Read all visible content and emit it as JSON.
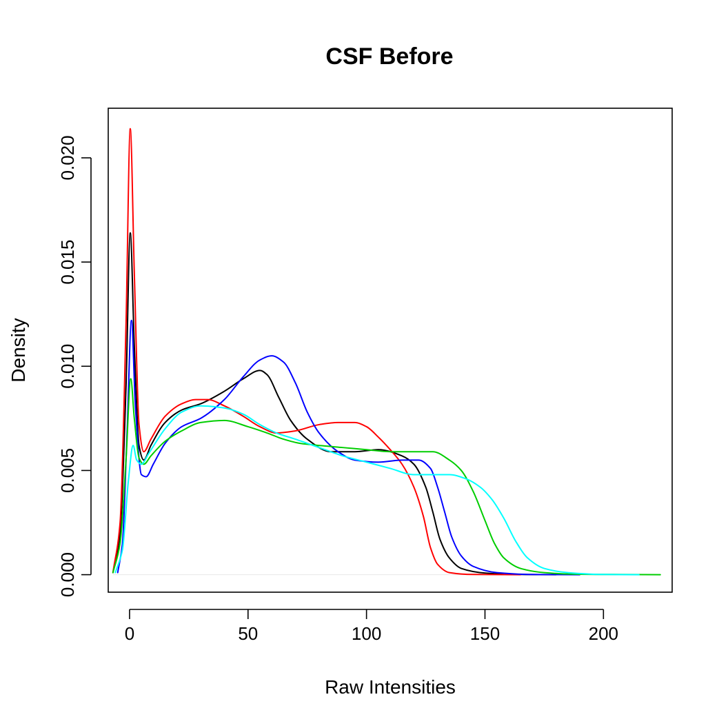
{
  "chart_data": {
    "type": "line",
    "title": "CSF Before",
    "xlabel": "Raw Intensities",
    "ylabel": "Density",
    "xlim": [
      -9,
      229
    ],
    "ylim": [
      -0.00084,
      0.02238
    ],
    "x_ticks": [
      0,
      50,
      100,
      150,
      200
    ],
    "x_tick_labels": [
      "0",
      "50",
      "100",
      "150",
      "200"
    ],
    "y_ticks": [
      0.0,
      0.005,
      0.01,
      0.015,
      0.02
    ],
    "y_tick_labels": [
      "0.000",
      "0.005",
      "0.010",
      "0.015",
      "0.020"
    ],
    "grid": false,
    "legend": "none",
    "series": [
      {
        "color": "#000000",
        "points": [
          [
            -7,
            0.0001
          ],
          [
            -4,
            0.002
          ],
          [
            -1.5,
            0.009
          ],
          [
            0.3,
            0.0164
          ],
          [
            2,
            0.011
          ],
          [
            4,
            0.0062
          ],
          [
            6,
            0.0055
          ],
          [
            9,
            0.0062
          ],
          [
            15,
            0.0073
          ],
          [
            22,
            0.0079
          ],
          [
            30,
            0.0082
          ],
          [
            40,
            0.0088
          ],
          [
            48,
            0.0094
          ],
          [
            55,
            0.0098
          ],
          [
            58,
            0.0096
          ],
          [
            63,
            0.0085
          ],
          [
            68,
            0.0074
          ],
          [
            75,
            0.0065
          ],
          [
            85,
            0.0059
          ],
          [
            95,
            0.0059
          ],
          [
            105,
            0.006
          ],
          [
            115,
            0.0057
          ],
          [
            120,
            0.0053
          ],
          [
            125,
            0.0042
          ],
          [
            128,
            0.003
          ],
          [
            131,
            0.0017
          ],
          [
            135,
            0.0008
          ],
          [
            140,
            0.0003
          ],
          [
            150,
            8e-05
          ],
          [
            165,
            1e-05
          ],
          [
            180,
            0.0
          ]
        ]
      },
      {
        "color": "#ff0000",
        "points": [
          [
            -7,
            0.0001
          ],
          [
            -4,
            0.0025
          ],
          [
            -1.5,
            0.012
          ],
          [
            0.3,
            0.0214
          ],
          [
            2,
            0.0145
          ],
          [
            4,
            0.0072
          ],
          [
            6,
            0.0059
          ],
          [
            9,
            0.0065
          ],
          [
            15,
            0.0076
          ],
          [
            22,
            0.0082
          ],
          [
            28,
            0.0084
          ],
          [
            33,
            0.0084
          ],
          [
            40,
            0.0081
          ],
          [
            48,
            0.0076
          ],
          [
            55,
            0.0071
          ],
          [
            62,
            0.0068
          ],
          [
            70,
            0.0069
          ],
          [
            80,
            0.0072
          ],
          [
            88,
            0.0073
          ],
          [
            95,
            0.0073
          ],
          [
            100,
            0.0071
          ],
          [
            105,
            0.0066
          ],
          [
            110,
            0.006
          ],
          [
            115,
            0.0053
          ],
          [
            120,
            0.0042
          ],
          [
            124,
            0.0028
          ],
          [
            127,
            0.0013
          ],
          [
            130,
            0.0005
          ],
          [
            135,
            0.0001
          ],
          [
            145,
            1e-05
          ],
          [
            165,
            0.0
          ]
        ]
      },
      {
        "color": "#0000ff",
        "points": [
          [
            -5,
            0.0001
          ],
          [
            -3,
            0.0015
          ],
          [
            -1,
            0.007
          ],
          [
            0.8,
            0.0122
          ],
          [
            2.5,
            0.008
          ],
          [
            5,
            0.0048
          ],
          [
            7,
            0.0047
          ],
          [
            10,
            0.0053
          ],
          [
            15,
            0.0063
          ],
          [
            22,
            0.0071
          ],
          [
            30,
            0.0075
          ],
          [
            40,
            0.0084
          ],
          [
            48,
            0.0095
          ],
          [
            55,
            0.0103
          ],
          [
            60,
            0.0105
          ],
          [
            65,
            0.0102
          ],
          [
            70,
            0.0092
          ],
          [
            75,
            0.0078
          ],
          [
            80,
            0.0068
          ],
          [
            88,
            0.0059
          ],
          [
            95,
            0.0055
          ],
          [
            105,
            0.0054
          ],
          [
            115,
            0.0055
          ],
          [
            122,
            0.0055
          ],
          [
            127,
            0.0051
          ],
          [
            130,
            0.0042
          ],
          [
            133,
            0.003
          ],
          [
            136,
            0.0018
          ],
          [
            140,
            0.0009
          ],
          [
            145,
            0.0004
          ],
          [
            155,
            0.0001
          ],
          [
            170,
            1e-05
          ],
          [
            190,
            0.0
          ]
        ]
      },
      {
        "color": "#00cd00",
        "points": [
          [
            -7,
            0.0001
          ],
          [
            -4,
            0.0015
          ],
          [
            -1.5,
            0.0055
          ],
          [
            0.5,
            0.0094
          ],
          [
            2,
            0.0075
          ],
          [
            4,
            0.0056
          ],
          [
            6,
            0.0053
          ],
          [
            9,
            0.0057
          ],
          [
            15,
            0.0064
          ],
          [
            22,
            0.0069
          ],
          [
            30,
            0.0073
          ],
          [
            40,
            0.0074
          ],
          [
            50,
            0.0071
          ],
          [
            58,
            0.0068
          ],
          [
            65,
            0.0065
          ],
          [
            72,
            0.0063
          ],
          [
            80,
            0.0062
          ],
          [
            90,
            0.0061
          ],
          [
            100,
            0.006
          ],
          [
            110,
            0.0059
          ],
          [
            120,
            0.0059
          ],
          [
            128,
            0.0059
          ],
          [
            135,
            0.0055
          ],
          [
            140,
            0.005
          ],
          [
            145,
            0.004
          ],
          [
            150,
            0.0026
          ],
          [
            154,
            0.0015
          ],
          [
            158,
            0.0008
          ],
          [
            165,
            0.0003
          ],
          [
            175,
            0.0001
          ],
          [
            190,
            2e-05
          ],
          [
            224,
            0.0
          ]
        ]
      },
      {
        "color": "#00ffff",
        "points": [
          [
            -6,
            0.0001
          ],
          [
            -3,
            0.0012
          ],
          [
            -0.5,
            0.0045
          ],
          [
            1.5,
            0.0062
          ],
          [
            3,
            0.0055
          ],
          [
            5,
            0.0053
          ],
          [
            8,
            0.0058
          ],
          [
            15,
            0.007
          ],
          [
            22,
            0.0078
          ],
          [
            30,
            0.0081
          ],
          [
            40,
            0.008
          ],
          [
            48,
            0.0077
          ],
          [
            55,
            0.0072
          ],
          [
            62,
            0.0068
          ],
          [
            70,
            0.0065
          ],
          [
            80,
            0.0061
          ],
          [
            90,
            0.0057
          ],
          [
            100,
            0.0054
          ],
          [
            110,
            0.0051
          ],
          [
            120,
            0.0048
          ],
          [
            128,
            0.0048
          ],
          [
            135,
            0.0048
          ],
          [
            142,
            0.0046
          ],
          [
            148,
            0.0042
          ],
          [
            153,
            0.0036
          ],
          [
            158,
            0.0027
          ],
          [
            163,
            0.0016
          ],
          [
            168,
            0.0008
          ],
          [
            175,
            0.0003
          ],
          [
            185,
            0.0001
          ],
          [
            200,
            1e-05
          ],
          [
            215,
            0.0
          ]
        ]
      }
    ]
  }
}
